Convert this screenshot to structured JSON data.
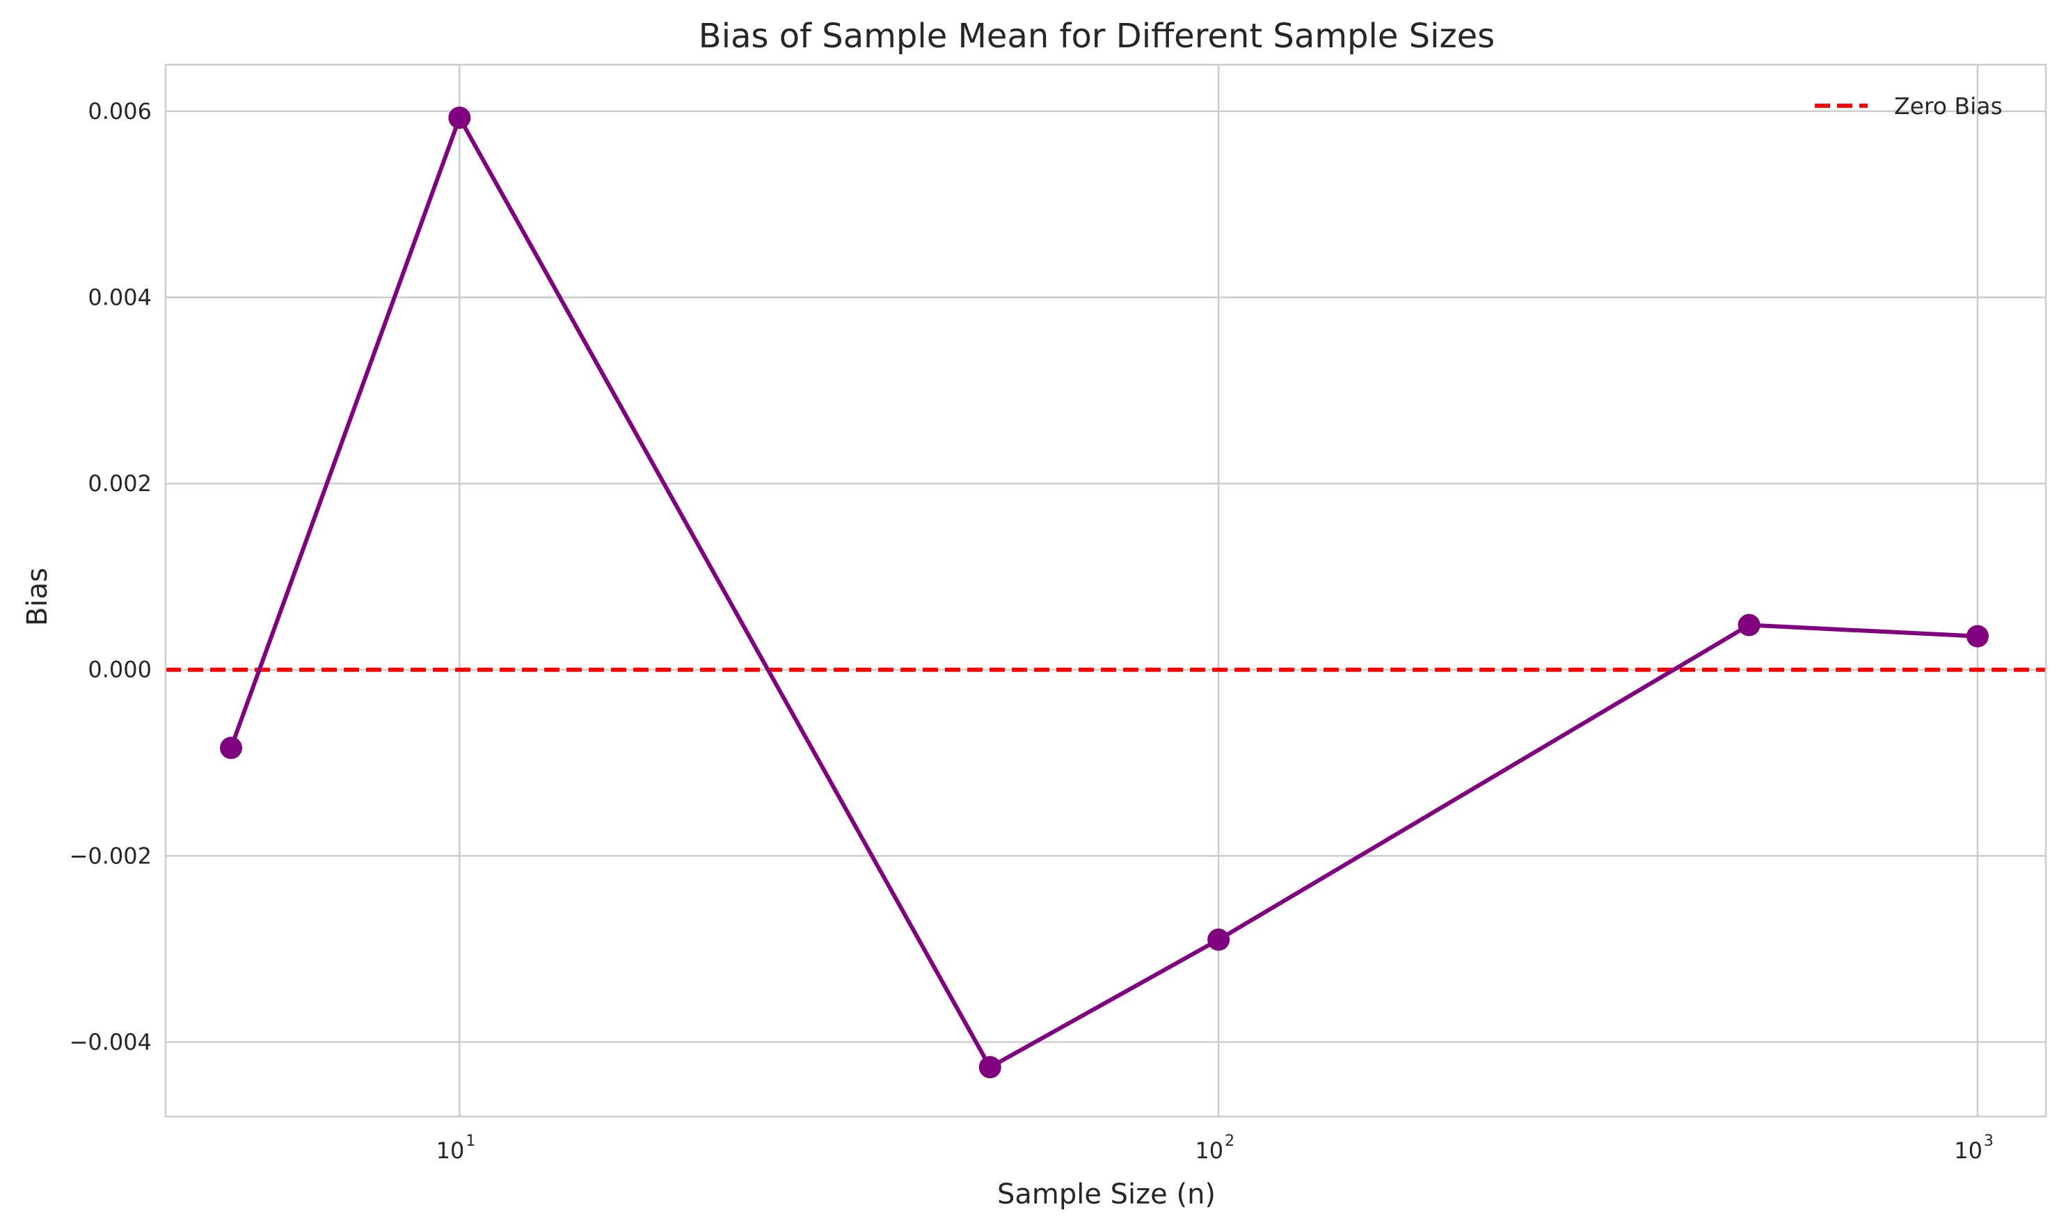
{
  "chart_data": {
    "type": "line",
    "title": "Bias of Sample Mean for Different Sample Sizes",
    "xlabel": "Sample Size (n)",
    "ylabel": "Bias",
    "x_scale": "log",
    "xlim": [
      4.1,
      1230
    ],
    "ylim": [
      -0.0048,
      0.0065
    ],
    "x_ticks": [
      {
        "value": 10,
        "base": "10",
        "exp": "1"
      },
      {
        "value": 100,
        "base": "10",
        "exp": "2"
      },
      {
        "value": 1000,
        "base": "10",
        "exp": "3"
      }
    ],
    "y_ticks": [
      {
        "value": -0.004,
        "label": "−0.004"
      },
      {
        "value": -0.002,
        "label": "−0.002"
      },
      {
        "value": 0,
        "label": "0.000"
      },
      {
        "value": 0.002,
        "label": "0.002"
      },
      {
        "value": 0.004,
        "label": "0.004"
      },
      {
        "value": 0.006,
        "label": "0.006"
      }
    ],
    "grid": true,
    "series": [
      {
        "x": [
          5,
          10,
          50,
          100,
          500,
          1000
        ],
        "y": [
          -0.00084,
          0.00593,
          -0.00427,
          -0.0029,
          0.00048,
          0.00036
        ],
        "color": "#800080",
        "marker": "circle"
      }
    ],
    "reference_lines": [
      {
        "name": "Zero Bias",
        "y": 0,
        "color": "#ff0000",
        "style": "dashed"
      }
    ],
    "legend": {
      "position": "top-right",
      "entries": [
        {
          "label": "Zero Bias",
          "color": "#ff0000",
          "style": "dashed"
        }
      ]
    }
  }
}
